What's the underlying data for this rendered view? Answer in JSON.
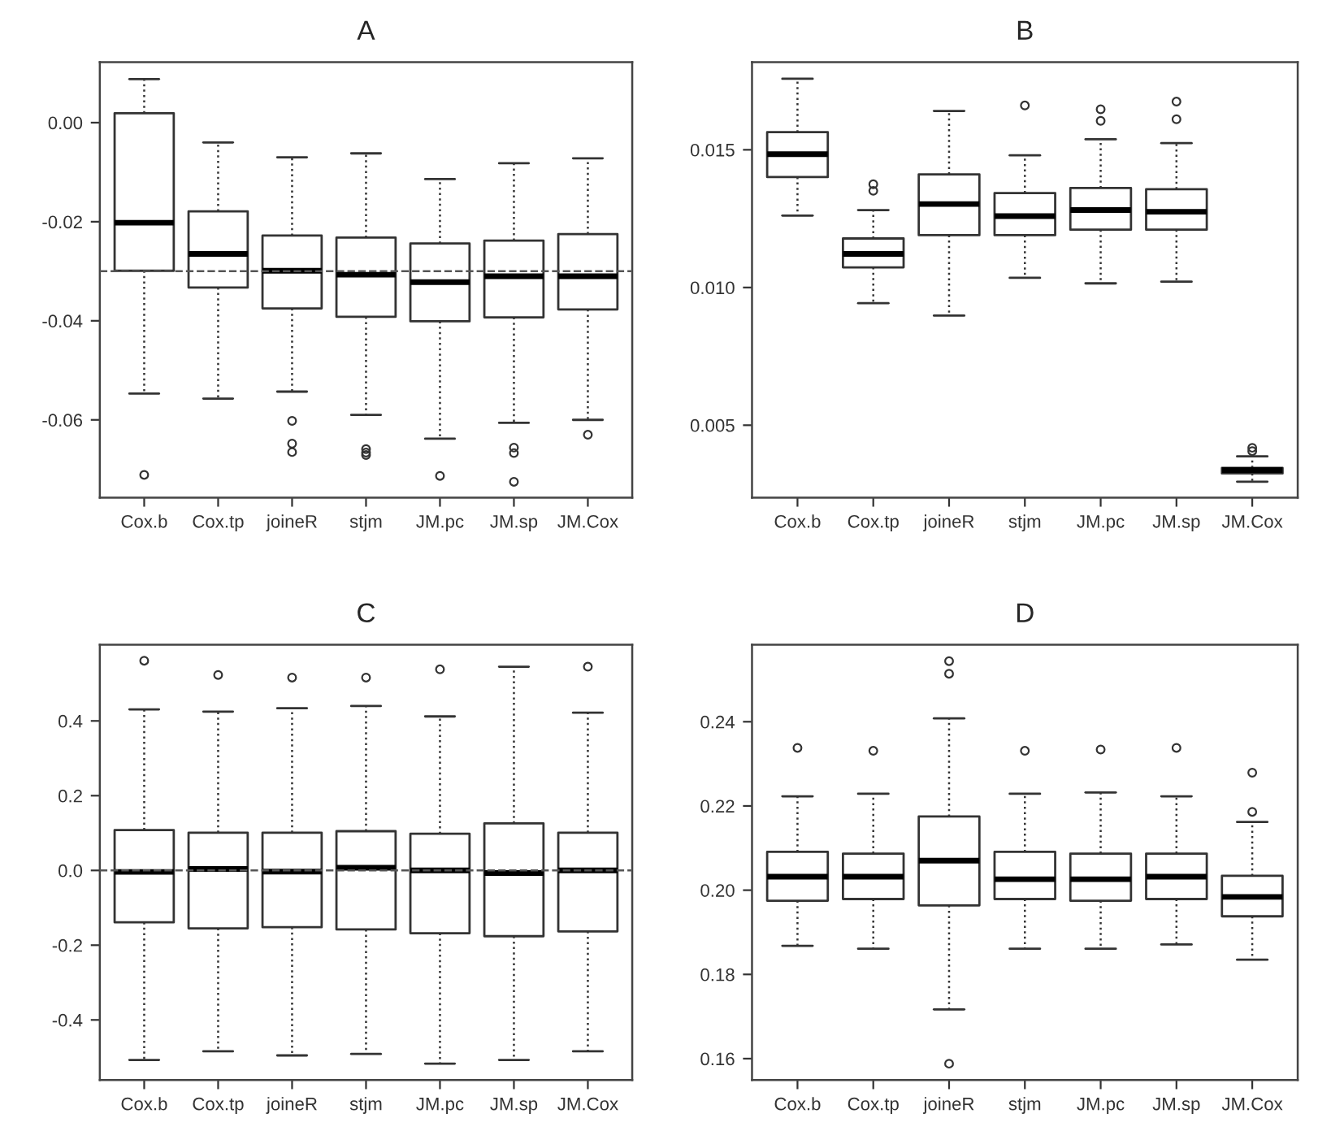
{
  "chart_data": [
    {
      "type": "box",
      "title": "A",
      "categories": [
        "Cox.b",
        "Cox.tp",
        "joineR",
        "stjm",
        "JM.pc",
        "JM.sp",
        "JM.Cox"
      ],
      "ylim": [
        -0.0757,
        0.0122
      ],
      "yticks": [
        {
          "value": 0,
          "label": "0.00"
        },
        -0.02,
        -0.04,
        -0.06
      ],
      "ref_lines": [
        {
          "axis": "y",
          "value": -0.03,
          "label": null,
          "color": "#555555",
          "line_style": "dashed"
        }
      ],
      "boxes": [
        {
          "low": -0.0547,
          "q1": -0.0299,
          "median": -0.0202,
          "q3": 0.0019,
          "high": 0.0088,
          "outliers": [
            -0.0711
          ]
        },
        {
          "low": -0.0557,
          "q1": -0.0333,
          "median": -0.0265,
          "q3": -0.0179,
          "high": -0.004
        },
        {
          "low": -0.0543,
          "q1": -0.0375,
          "median": -0.0299,
          "q3": -0.0228,
          "high": -0.007,
          "outliers": [
            -0.0602,
            -0.0648,
            -0.0665
          ]
        },
        {
          "low": -0.059,
          "q1": -0.0392,
          "median": -0.0307,
          "q3": -0.0232,
          "high": -0.0062,
          "outliers": [
            -0.0659,
            -0.0666,
            -0.0671
          ]
        },
        {
          "low": -0.0638,
          "q1": -0.0401,
          "median": -0.0322,
          "q3": -0.0244,
          "high": -0.0114,
          "outliers": [
            -0.0713
          ]
        },
        {
          "low": -0.0606,
          "q1": -0.0393,
          "median": -0.031,
          "q3": -0.0238,
          "high": -0.0082,
          "outliers": [
            -0.0656,
            -0.0667,
            -0.0725
          ]
        },
        {
          "low": -0.06,
          "q1": -0.0377,
          "median": -0.031,
          "q3": -0.0225,
          "high": -0.0072,
          "outliers": [
            -0.063
          ]
        }
      ]
    },
    {
      "type": "box",
      "title": "B",
      "categories": [
        "Cox.b",
        "Cox.tp",
        "joineR",
        "stjm",
        "JM.pc",
        "JM.sp",
        "JM.Cox"
      ],
      "ylim": [
        0.00237,
        0.01818
      ],
      "yticks": [
        0.015,
        {
          "value": 0.01,
          "label": "0.010"
        },
        0.005
      ],
      "boxes": [
        {
          "low": 0.01261,
          "q1": 0.01401,
          "median": 0.01484,
          "q3": 0.01564,
          "high": 0.01758
        },
        {
          "low": 0.00943,
          "q1": 0.01073,
          "median": 0.01122,
          "q3": 0.01178,
          "high": 0.01281,
          "outliers": [
            0.01375,
            0.01351
          ]
        },
        {
          "low": 0.00898,
          "q1": 0.0119,
          "median": 0.01303,
          "q3": 0.01411,
          "high": 0.01641
        },
        {
          "low": 0.01035,
          "q1": 0.0119,
          "median": 0.01259,
          "q3": 0.01343,
          "high": 0.0148,
          "outliers": [
            0.01661
          ]
        },
        {
          "low": 0.01015,
          "q1": 0.0121,
          "median": 0.01281,
          "q3": 0.01361,
          "high": 0.01538,
          "outliers": [
            0.01647,
            0.01605
          ]
        },
        {
          "low": 0.01021,
          "q1": 0.0121,
          "median": 0.01275,
          "q3": 0.01357,
          "high": 0.01524,
          "outliers": [
            0.01675,
            0.01611
          ]
        },
        {
          "low": 0.00295,
          "q1": 0.00325,
          "median": 0.00337,
          "q3": 0.00345,
          "high": 0.00387,
          "outliers": [
            0.00418,
            0.00406
          ]
        }
      ]
    },
    {
      "type": "box",
      "title": "C",
      "categories": [
        "Cox.b",
        "Cox.tp",
        "joineR",
        "stjm",
        "JM.pc",
        "JM.sp",
        "JM.Cox"
      ],
      "ylim": [
        -0.561,
        0.604
      ],
      "yticks": [
        0.4,
        0.2,
        {
          "value": 0,
          "label": "0.0"
        },
        -0.2,
        -0.4
      ],
      "ref_lines": [
        {
          "axis": "y",
          "value": 0,
          "label": null,
          "color": "#555555",
          "line_style": "dashed"
        }
      ],
      "boxes": [
        {
          "low": -0.507,
          "q1": -0.139,
          "median": -0.004,
          "q3": 0.108,
          "high": 0.431,
          "outliers": [
            0.561
          ]
        },
        {
          "low": -0.484,
          "q1": -0.155,
          "median": 0.004,
          "q3": 0.101,
          "high": 0.425,
          "outliers": [
            0.523
          ]
        },
        {
          "low": -0.495,
          "q1": -0.152,
          "median": -0.003,
          "q3": 0.101,
          "high": 0.434,
          "outliers": [
            0.516
          ]
        },
        {
          "low": -0.491,
          "q1": -0.158,
          "median": 0.007,
          "q3": 0.105,
          "high": 0.44,
          "outliers": [
            0.516
          ]
        },
        {
          "low": -0.517,
          "q1": -0.168,
          "median": 0.0,
          "q3": 0.098,
          "high": 0.412,
          "outliers": [
            0.538
          ]
        },
        {
          "low": -0.507,
          "q1": -0.176,
          "median": -0.007,
          "q3": 0.126,
          "high": 0.545
        },
        {
          "low": -0.484,
          "q1": -0.163,
          "median": 0.0,
          "q3": 0.101,
          "high": 0.422,
          "outliers": [
            0.545
          ]
        }
      ]
    },
    {
      "type": "box",
      "title": "D",
      "categories": [
        "Cox.b",
        "Cox.tp",
        "joineR",
        "stjm",
        "JM.pc",
        "JM.sp",
        "JM.Cox"
      ],
      "ylim": [
        0.1549,
        0.2583
      ],
      "yticks": [
        0.24,
        0.22,
        {
          "value": 0.2,
          "label": "0.20"
        },
        0.18,
        0.16
      ],
      "boxes": [
        {
          "low": 0.1868,
          "q1": 0.1975,
          "median": 0.2032,
          "q3": 0.2091,
          "high": 0.2223,
          "outliers": [
            0.2338
          ]
        },
        {
          "low": 0.1861,
          "q1": 0.1979,
          "median": 0.2032,
          "q3": 0.2087,
          "high": 0.2229,
          "outliers": [
            0.2331
          ]
        },
        {
          "low": 0.1717,
          "q1": 0.1964,
          "median": 0.207,
          "q3": 0.2175,
          "high": 0.2408,
          "outliers": [
            0.2544,
            0.2514,
            0.1588
          ]
        },
        {
          "low": 0.1861,
          "q1": 0.1979,
          "median": 0.2026,
          "q3": 0.2091,
          "high": 0.2229,
          "outliers": [
            0.2331
          ]
        },
        {
          "low": 0.1861,
          "q1": 0.1975,
          "median": 0.2026,
          "q3": 0.2087,
          "high": 0.2232,
          "outliers": [
            0.2334
          ]
        },
        {
          "low": 0.1871,
          "q1": 0.1979,
          "median": 0.2032,
          "q3": 0.2087,
          "high": 0.2223,
          "outliers": [
            0.2338
          ]
        },
        {
          "low": 0.1835,
          "q1": 0.1938,
          "median": 0.1984,
          "q3": 0.2034,
          "high": 0.2162,
          "outliers": [
            0.2279,
            0.2186
          ]
        }
      ]
    }
  ]
}
